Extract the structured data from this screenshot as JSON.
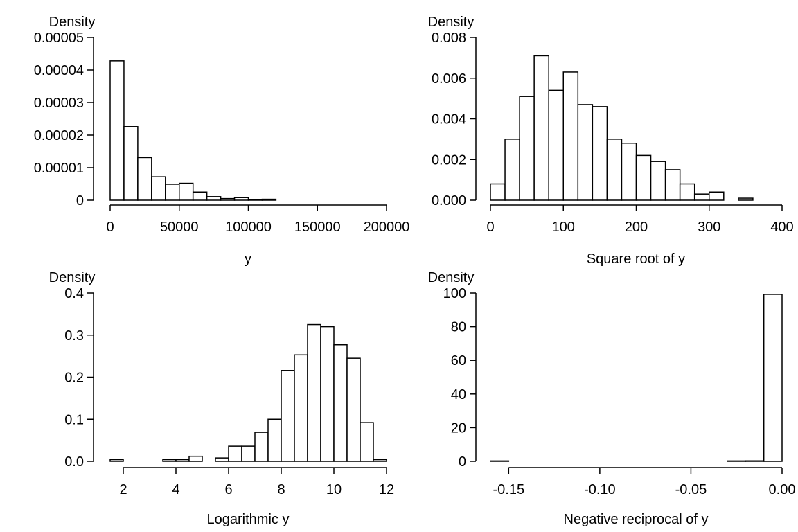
{
  "chart_data": [
    {
      "type": "bar",
      "panel": "top-left",
      "title": "",
      "xlabel": "y",
      "ylabel": "Density",
      "xlim": [
        0,
        200000
      ],
      "ylim": [
        0,
        5e-05
      ],
      "xticks": [
        0,
        50000,
        100000,
        150000,
        200000
      ],
      "xtick_labels": [
        "0",
        "50000",
        "100000",
        "150000",
        "200000"
      ],
      "yticks": [
        0,
        1e-05,
        2e-05,
        3e-05,
        4e-05,
        5e-05
      ],
      "ytick_labels": [
        "0",
        "0.00001",
        "0.00002",
        "0.00003",
        "0.00004",
        "0.00005"
      ],
      "bin_edges": [
        0,
        10000,
        20000,
        30000,
        40000,
        50000,
        60000,
        70000,
        80000,
        90000,
        100000,
        110000,
        120000
      ],
      "values": [
        4.28e-05,
        2.26e-05,
        1.31e-05,
        7.2e-06,
        4.9e-06,
        5.2e-06,
        2.5e-06,
        1.1e-06,
        5e-07,
        8e-07,
        2e-07,
        3e-07
      ]
    },
    {
      "type": "bar",
      "panel": "top-right",
      "title": "",
      "xlabel": "Square root of y",
      "ylabel": "Density",
      "xlim": [
        0,
        400
      ],
      "ylim": [
        0,
        0.008
      ],
      "xticks": [
        0,
        100,
        200,
        300,
        400
      ],
      "xtick_labels": [
        "0",
        "100",
        "200",
        "300",
        "400"
      ],
      "yticks": [
        0,
        0.002,
        0.004,
        0.006,
        0.008
      ],
      "ytick_labels": [
        "0.000",
        "0.002",
        "0.004",
        "0.006",
        "0.008"
      ],
      "bin_edges": [
        0,
        20,
        40,
        60,
        80,
        100,
        120,
        140,
        160,
        180,
        200,
        220,
        240,
        260,
        280,
        300,
        320,
        340,
        360
      ],
      "values": [
        0.0008,
        0.003,
        0.0051,
        0.0071,
        0.0054,
        0.0063,
        0.0047,
        0.0046,
        0.003,
        0.0028,
        0.0022,
        0.0019,
        0.0015,
        0.0008,
        0.0003,
        0.0004,
        0.0,
        0.0001
      ]
    },
    {
      "type": "bar",
      "panel": "bottom-left",
      "title": "",
      "xlabel": "Logarithmic y",
      "ylabel": "Density",
      "xlim": [
        1.5,
        12
      ],
      "ylim": [
        0,
        0.4
      ],
      "xticks": [
        2,
        4,
        6,
        8,
        10,
        12
      ],
      "xtick_labels": [
        "2",
        "4",
        "6",
        "8",
        "10",
        "12"
      ],
      "yticks": [
        0,
        0.1,
        0.2,
        0.3,
        0.4
      ],
      "ytick_labels": [
        "0.0",
        "0.1",
        "0.2",
        "0.3",
        "0.4"
      ],
      "bin_edges": [
        1.5,
        2,
        2.5,
        3,
        3.5,
        4,
        4.5,
        5,
        5.5,
        6,
        6.5,
        7,
        7.5,
        8,
        8.5,
        9,
        9.5,
        10,
        10.5,
        11,
        11.5,
        12
      ],
      "values": [
        0.004,
        0.0,
        0.0,
        0.0,
        0.004,
        0.004,
        0.012,
        0.0,
        0.008,
        0.036,
        0.036,
        0.069,
        0.1,
        0.216,
        0.253,
        0.325,
        0.32,
        0.277,
        0.245,
        0.092,
        0.004
      ]
    },
    {
      "type": "bar",
      "panel": "bottom-right",
      "title": "",
      "xlabel": "Negative reciprocal of y",
      "ylabel": "Density",
      "xlim": [
        -0.16,
        0.0
      ],
      "ylim": [
        0,
        100
      ],
      "xticks": [
        -0.15,
        -0.1,
        -0.05,
        0.0
      ],
      "xtick_labels": [
        "-0.15",
        "-0.10",
        "-0.05",
        "0.00"
      ],
      "yticks": [
        0,
        20,
        40,
        60,
        80,
        100
      ],
      "ytick_labels": [
        "0",
        "20",
        "40",
        "60",
        "80",
        "100"
      ],
      "bin_edges": [
        -0.16,
        -0.15,
        -0.14,
        -0.13,
        -0.12,
        -0.11,
        -0.1,
        -0.09,
        -0.08,
        -0.07,
        -0.06,
        -0.05,
        -0.04,
        -0.03,
        -0.02,
        -0.01,
        0.0
      ],
      "values": [
        0.25,
        0,
        0,
        0,
        0,
        0,
        0,
        0,
        0,
        0,
        0,
        0,
        0,
        0.25,
        0.3,
        99.2
      ]
    }
  ]
}
